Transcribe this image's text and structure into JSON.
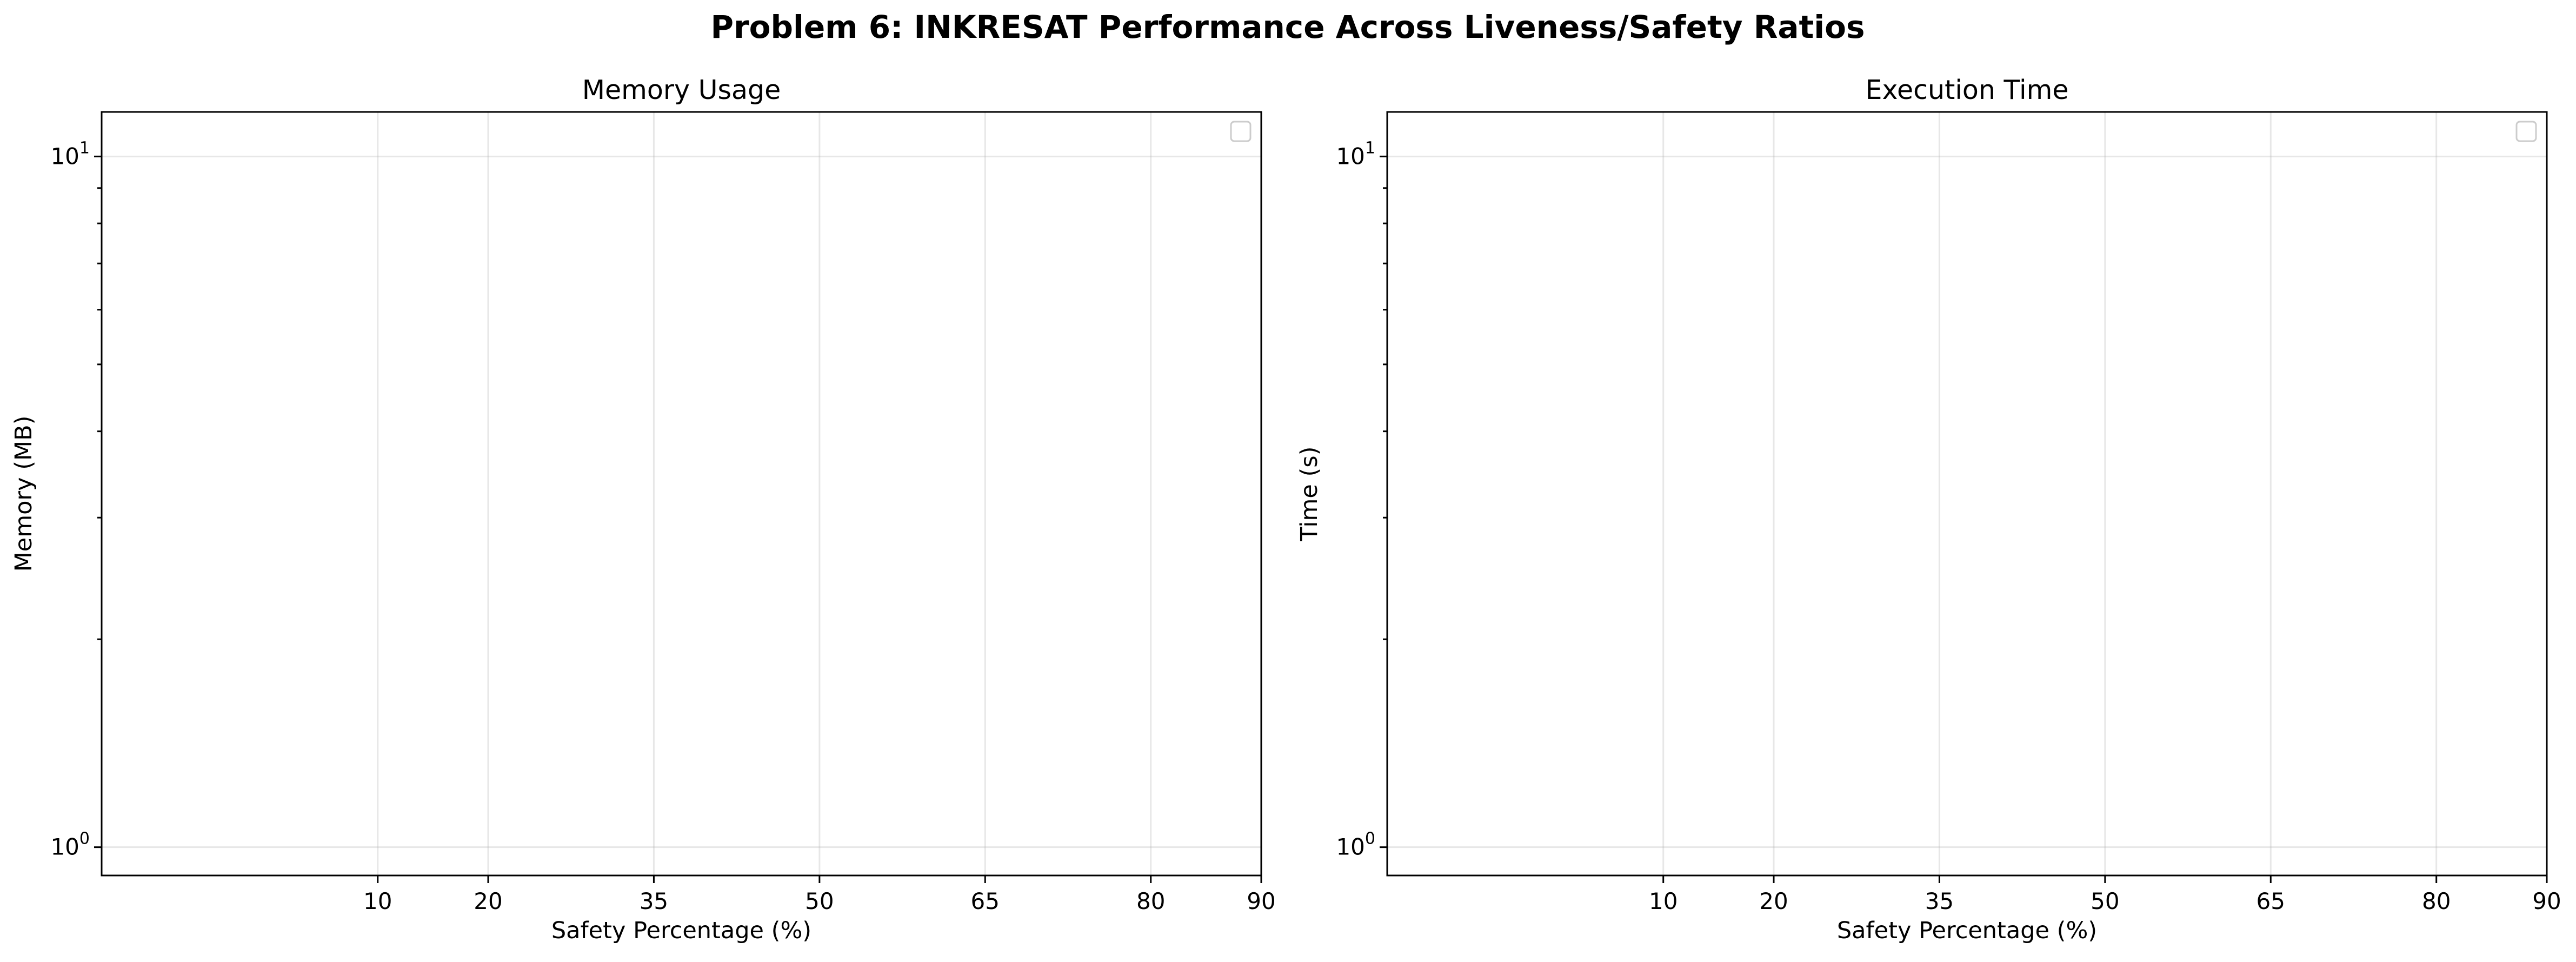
{
  "figure": {
    "suptitle": "Problem 6: INKRESAT Performance Across Liveness/Safety Ratios"
  },
  "chart_data": [
    {
      "type": "line",
      "title": "Memory Usage",
      "xlabel": "Safety Percentage (%)",
      "ylabel": "Memory (MB)",
      "yscale": "log",
      "xlim": [
        -15,
        90
      ],
      "ylim": [
        0.91,
        11.6
      ],
      "xticks": [
        10,
        20,
        35,
        50,
        65,
        80,
        90
      ],
      "yticks": [
        {
          "value": 1,
          "base": "10",
          "exp": "0"
        },
        {
          "value": 10,
          "base": "10",
          "exp": "1"
        }
      ],
      "grid": true,
      "legend": "upper right",
      "series": []
    },
    {
      "type": "line",
      "title": "Execution Time",
      "xlabel": "Safety Percentage (%)",
      "ylabel": "Time (s)",
      "yscale": "log",
      "xlim": [
        -15,
        90
      ],
      "ylim": [
        0.91,
        11.6
      ],
      "xticks": [
        10,
        20,
        35,
        50,
        65,
        80,
        90
      ],
      "yticks": [
        {
          "value": 1,
          "base": "10",
          "exp": "0"
        },
        {
          "value": 10,
          "base": "10",
          "exp": "1"
        }
      ],
      "grid": true,
      "legend": "upper right",
      "series": []
    }
  ]
}
